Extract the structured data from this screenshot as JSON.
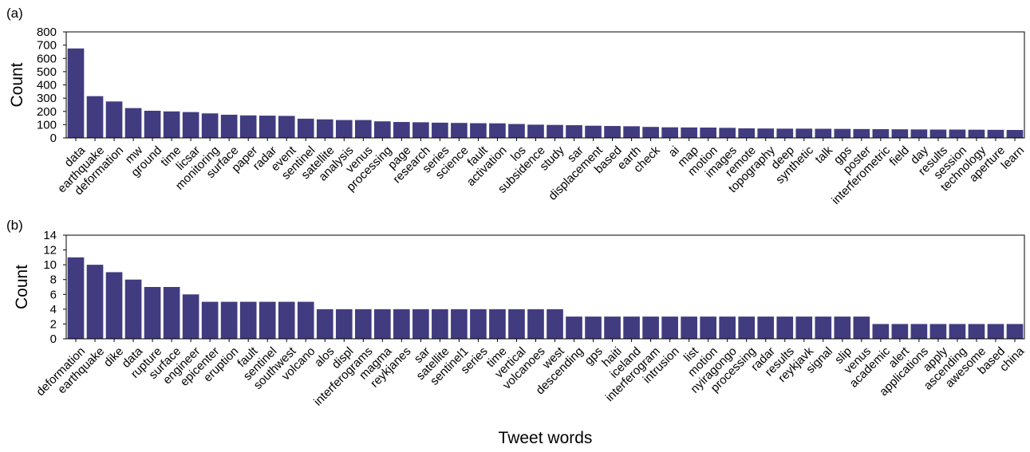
{
  "chart_data": [
    {
      "type": "bar",
      "panel_label": "(a)",
      "ylabel": "Count",
      "xlabel": "",
      "ylim": [
        0,
        800
      ],
      "yticks": [
        0,
        100,
        200,
        300,
        400,
        500,
        600,
        700,
        800
      ],
      "grid": false,
      "bar_color": "#413c80",
      "categories": [
        "data",
        "earthquake",
        "deformation",
        "mw",
        "ground",
        "time",
        "licsar",
        "monitoring",
        "surface",
        "paper",
        "radar",
        "event",
        "sentinel",
        "satellite",
        "analysis",
        "venus",
        "processing",
        "page",
        "research",
        "series",
        "science",
        "fault",
        "activation",
        "los",
        "subsidence",
        "study",
        "sar",
        "displacement",
        "based",
        "earth",
        "check",
        "ai",
        "map",
        "motion",
        "images",
        "remote",
        "topography",
        "deep",
        "synthetic",
        "talk",
        "gps",
        "poster",
        "interferometric",
        "field",
        "day",
        "results",
        "session",
        "technology",
        "aperture",
        "learn"
      ],
      "values": [
        675,
        315,
        275,
        225,
        205,
        200,
        195,
        185,
        175,
        170,
        168,
        166,
        145,
        140,
        135,
        135,
        125,
        120,
        118,
        115,
        113,
        111,
        110,
        105,
        100,
        98,
        96,
        92,
        90,
        88,
        83,
        80,
        79,
        78,
        76,
        72,
        71,
        70,
        70,
        69,
        68,
        67,
        66,
        65,
        64,
        63,
        63,
        62,
        61,
        60
      ]
    },
    {
      "type": "bar",
      "panel_label": "(b)",
      "ylabel": "Count",
      "xlabel": "Tweet words",
      "ylim": [
        0,
        14
      ],
      "yticks": [
        0,
        2,
        4,
        6,
        8,
        10,
        12,
        14
      ],
      "grid": false,
      "bar_color": "#413c80",
      "categories": [
        "deformation",
        "earthquake",
        "dike",
        "data",
        "rupture",
        "surface",
        "engineer",
        "epicenter",
        "eruption",
        "fault",
        "sentinel",
        "southwest",
        "volcano",
        "alos",
        "displ",
        "interferograms",
        "magma",
        "reykjanes",
        "sar",
        "satellite",
        "sentinel1",
        "series",
        "time",
        "vertical",
        "volcanoes",
        "west",
        "descending",
        "gps",
        "haiti",
        "iceland",
        "interferogram",
        "intrusion",
        "list",
        "motion",
        "nyiragongo",
        "processing",
        "radar",
        "results",
        "reykjavk",
        "signal",
        "slip",
        "venus",
        "academic",
        "alert",
        "applications",
        "apply",
        "ascending",
        "awesome",
        "based",
        "china"
      ],
      "values": [
        11,
        10,
        9,
        8,
        7,
        7,
        6,
        5,
        5,
        5,
        5,
        5,
        5,
        4,
        4,
        4,
        4,
        4,
        4,
        4,
        4,
        4,
        4,
        4,
        4,
        4,
        3,
        3,
        3,
        3,
        3,
        3,
        3,
        3,
        3,
        3,
        3,
        3,
        3,
        3,
        3,
        3,
        2,
        2,
        2,
        2,
        2,
        2,
        2,
        2
      ]
    }
  ]
}
